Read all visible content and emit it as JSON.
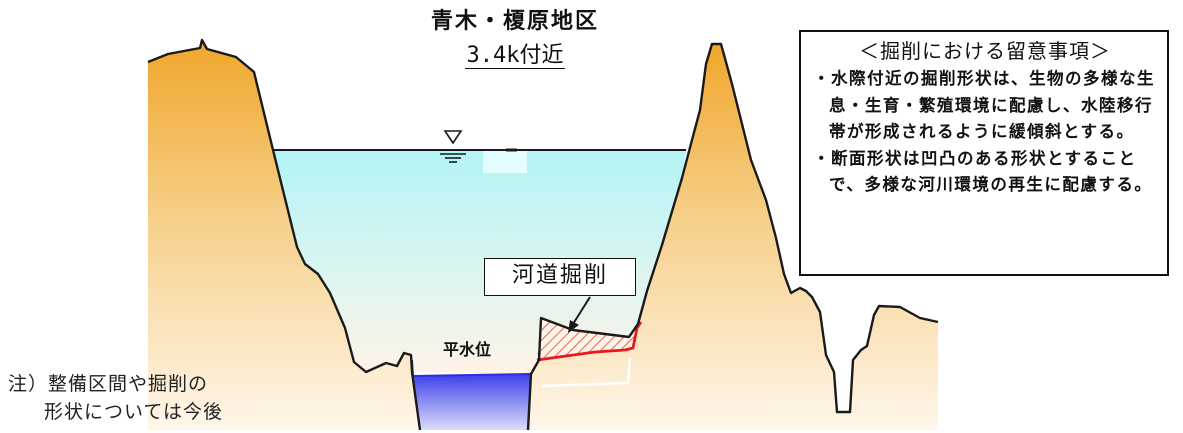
{
  "title": "青木・榎原地区",
  "location": "3.4k付近",
  "notes": {
    "heading": "＜掘削における留意事項＞",
    "items": [
      "・水際付近の掘削形状は、生物の多様な生息・生育・繁殖環境に配慮し、水陸移行帯が形成されるように緩傾斜とする。",
      "・断面形状は凹凸のある形状とすることで、多様な河川環境の再生に配慮する。"
    ]
  },
  "excavation_label": "河道掘削",
  "normal_water_level_label": "平水位",
  "footnote": {
    "line1": "注）整備区間や掘削の",
    "line2": "形状については今後"
  },
  "colors": {
    "ground_top": "#f0a62a",
    "ground_bottom": "#fff6ea",
    "water_top": "#b3f4f6",
    "water_bottom": "#fff3e6",
    "normal_water": "#5a5ef0",
    "excavation_line": "#e8181c",
    "hatch": "#d04a2c"
  }
}
